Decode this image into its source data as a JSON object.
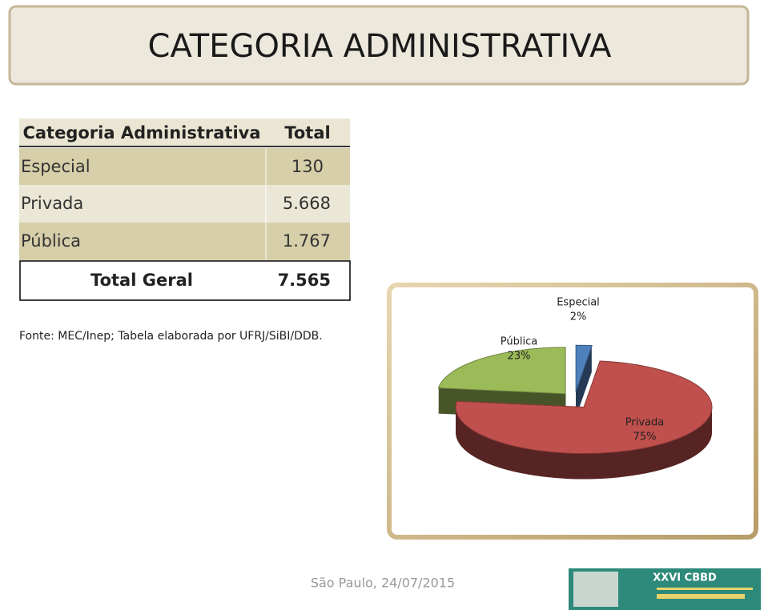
{
  "header": {
    "title": "CATEGORIA ADMINISTRATIVA"
  },
  "table": {
    "columns": [
      "Categoria Administrativa",
      "Total"
    ],
    "rows": [
      [
        "Especial",
        "130"
      ],
      [
        "Privada",
        "5.668"
      ],
      [
        "Pública",
        "1.767"
      ]
    ],
    "total": [
      "Total Geral",
      "7.565"
    ]
  },
  "source": "Fonte: MEC/Inep; Tabela elaborada por UFRJ/SiBI/DDB.",
  "chart_data": {
    "type": "pie",
    "categories": [
      "Especial",
      "Privada",
      "Pública"
    ],
    "values": [
      2,
      75,
      23
    ],
    "value_labels": [
      "2%",
      "75%",
      "23%"
    ],
    "colors": [
      "#4f81bd",
      "#c0504d",
      "#9bbb59"
    ]
  },
  "footer": {
    "place_date": "São Paulo, 24/07/2015",
    "logo": "XXVI CBBD"
  }
}
